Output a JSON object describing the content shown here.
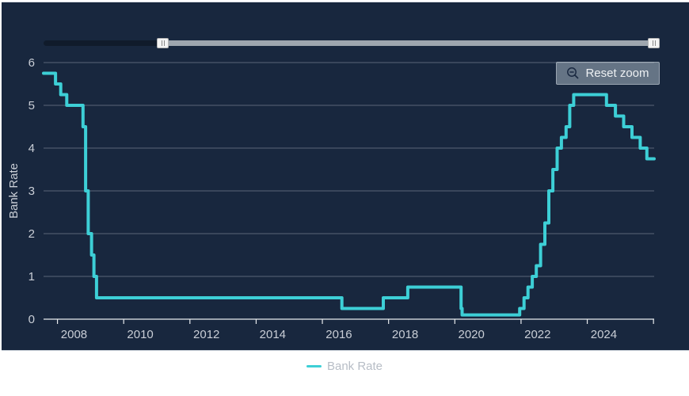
{
  "card": {
    "background": "#18273E"
  },
  "colors": {
    "series": "#3DCFD6",
    "grid_line": "rgba(230,236,242,0.32)",
    "axis_line": "#e8ebee",
    "axis_label": "#c9ced6",
    "legend_text": "#b7bdc6"
  },
  "navigator": {
    "left_handle_icon": "grip-lines-icon",
    "right_handle_icon": "grip-lines-icon"
  },
  "reset_button": {
    "label": "Reset zoom",
    "icon": "zoom-out-icon"
  },
  "chart_data": {
    "type": "line",
    "step": true,
    "title": "",
    "xlabel": "",
    "ylabel": "Bank Rate",
    "xlim": [
      2007.58,
      2026.02
    ],
    "ylim": [
      0,
      6
    ],
    "y_ticks": [
      0,
      1,
      2,
      3,
      4,
      5,
      6
    ],
    "y_tick_labels": [
      "0",
      "1",
      "2",
      "3",
      "4",
      "5",
      "6"
    ],
    "x_ticks": [
      2008,
      2010,
      2012,
      2014,
      2016,
      2018,
      2020,
      2022,
      2024,
      2026
    ],
    "x_label_positions": [
      2008.5,
      2010.5,
      2012.5,
      2014.5,
      2016.5,
      2018.5,
      2020.5,
      2022.5,
      2024.5
    ],
    "x_tick_labels": [
      "2008",
      "2010",
      "2012",
      "2014",
      "2016",
      "2018",
      "2020",
      "2022",
      "2024"
    ],
    "grid": true,
    "legend": {
      "label": "Bank Rate",
      "position": "bottom"
    },
    "series": [
      {
        "name": "Bank Rate",
        "color": "#3DCFD6",
        "points": [
          {
            "date": "Jul 2007",
            "x": 2007.58,
            "rate": 5.75
          },
          {
            "date": "Dec 2007",
            "x": 2007.94,
            "rate": 5.5
          },
          {
            "date": "Feb 2008",
            "x": 2008.1,
            "rate": 5.25
          },
          {
            "date": "Apr 2008",
            "x": 2008.28,
            "rate": 5.0
          },
          {
            "date": "Oct 2008",
            "x": 2008.77,
            "rate": 4.5
          },
          {
            "date": "Nov 2008",
            "x": 2008.85,
            "rate": 3.0
          },
          {
            "date": "Dec 2008",
            "x": 2008.93,
            "rate": 2.0
          },
          {
            "date": "Jan 2009",
            "x": 2009.03,
            "rate": 1.5
          },
          {
            "date": "Feb 2009",
            "x": 2009.1,
            "rate": 1.0
          },
          {
            "date": "Mar 2009",
            "x": 2009.18,
            "rate": 0.5
          },
          {
            "date": "Aug 2016",
            "x": 2016.59,
            "rate": 0.25
          },
          {
            "date": "Nov 2017",
            "x": 2017.84,
            "rate": 0.5
          },
          {
            "date": "Aug 2018",
            "x": 2018.58,
            "rate": 0.75
          },
          {
            "date": "Mar 2020",
            "x": 2020.19,
            "rate": 0.25
          },
          {
            "date": "Mar 2020",
            "x": 2020.22,
            "rate": 0.1
          },
          {
            "date": "Dec 2021",
            "x": 2021.96,
            "rate": 0.25
          },
          {
            "date": "Feb 2022",
            "x": 2022.09,
            "rate": 0.5
          },
          {
            "date": "Mar 2022",
            "x": 2022.21,
            "rate": 0.75
          },
          {
            "date": "May 2022",
            "x": 2022.34,
            "rate": 1.0
          },
          {
            "date": "Jun 2022",
            "x": 2022.46,
            "rate": 1.25
          },
          {
            "date": "Aug 2022",
            "x": 2022.59,
            "rate": 1.75
          },
          {
            "date": "Sep 2022",
            "x": 2022.72,
            "rate": 2.25
          },
          {
            "date": "Nov 2022",
            "x": 2022.84,
            "rate": 3.0
          },
          {
            "date": "Dec 2022",
            "x": 2022.96,
            "rate": 3.5
          },
          {
            "date": "Feb 2023",
            "x": 2023.09,
            "rate": 4.0
          },
          {
            "date": "Mar 2023",
            "x": 2023.22,
            "rate": 4.25
          },
          {
            "date": "May 2023",
            "x": 2023.36,
            "rate": 4.5
          },
          {
            "date": "Jun 2023",
            "x": 2023.47,
            "rate": 5.0
          },
          {
            "date": "Aug 2023",
            "x": 2023.59,
            "rate": 5.25
          },
          {
            "date": "Aug 2024",
            "x": 2024.58,
            "rate": 5.0
          },
          {
            "date": "Nov 2024",
            "x": 2024.85,
            "rate": 4.75
          },
          {
            "date": "Feb 2025",
            "x": 2025.1,
            "rate": 4.5
          },
          {
            "date": "May 2025",
            "x": 2025.35,
            "rate": 4.25
          },
          {
            "date": "Aug 2025",
            "x": 2025.6,
            "rate": 4.0
          },
          {
            "date": "Nov 2025",
            "x": 2025.8,
            "rate": 3.75
          }
        ]
      }
    ]
  }
}
